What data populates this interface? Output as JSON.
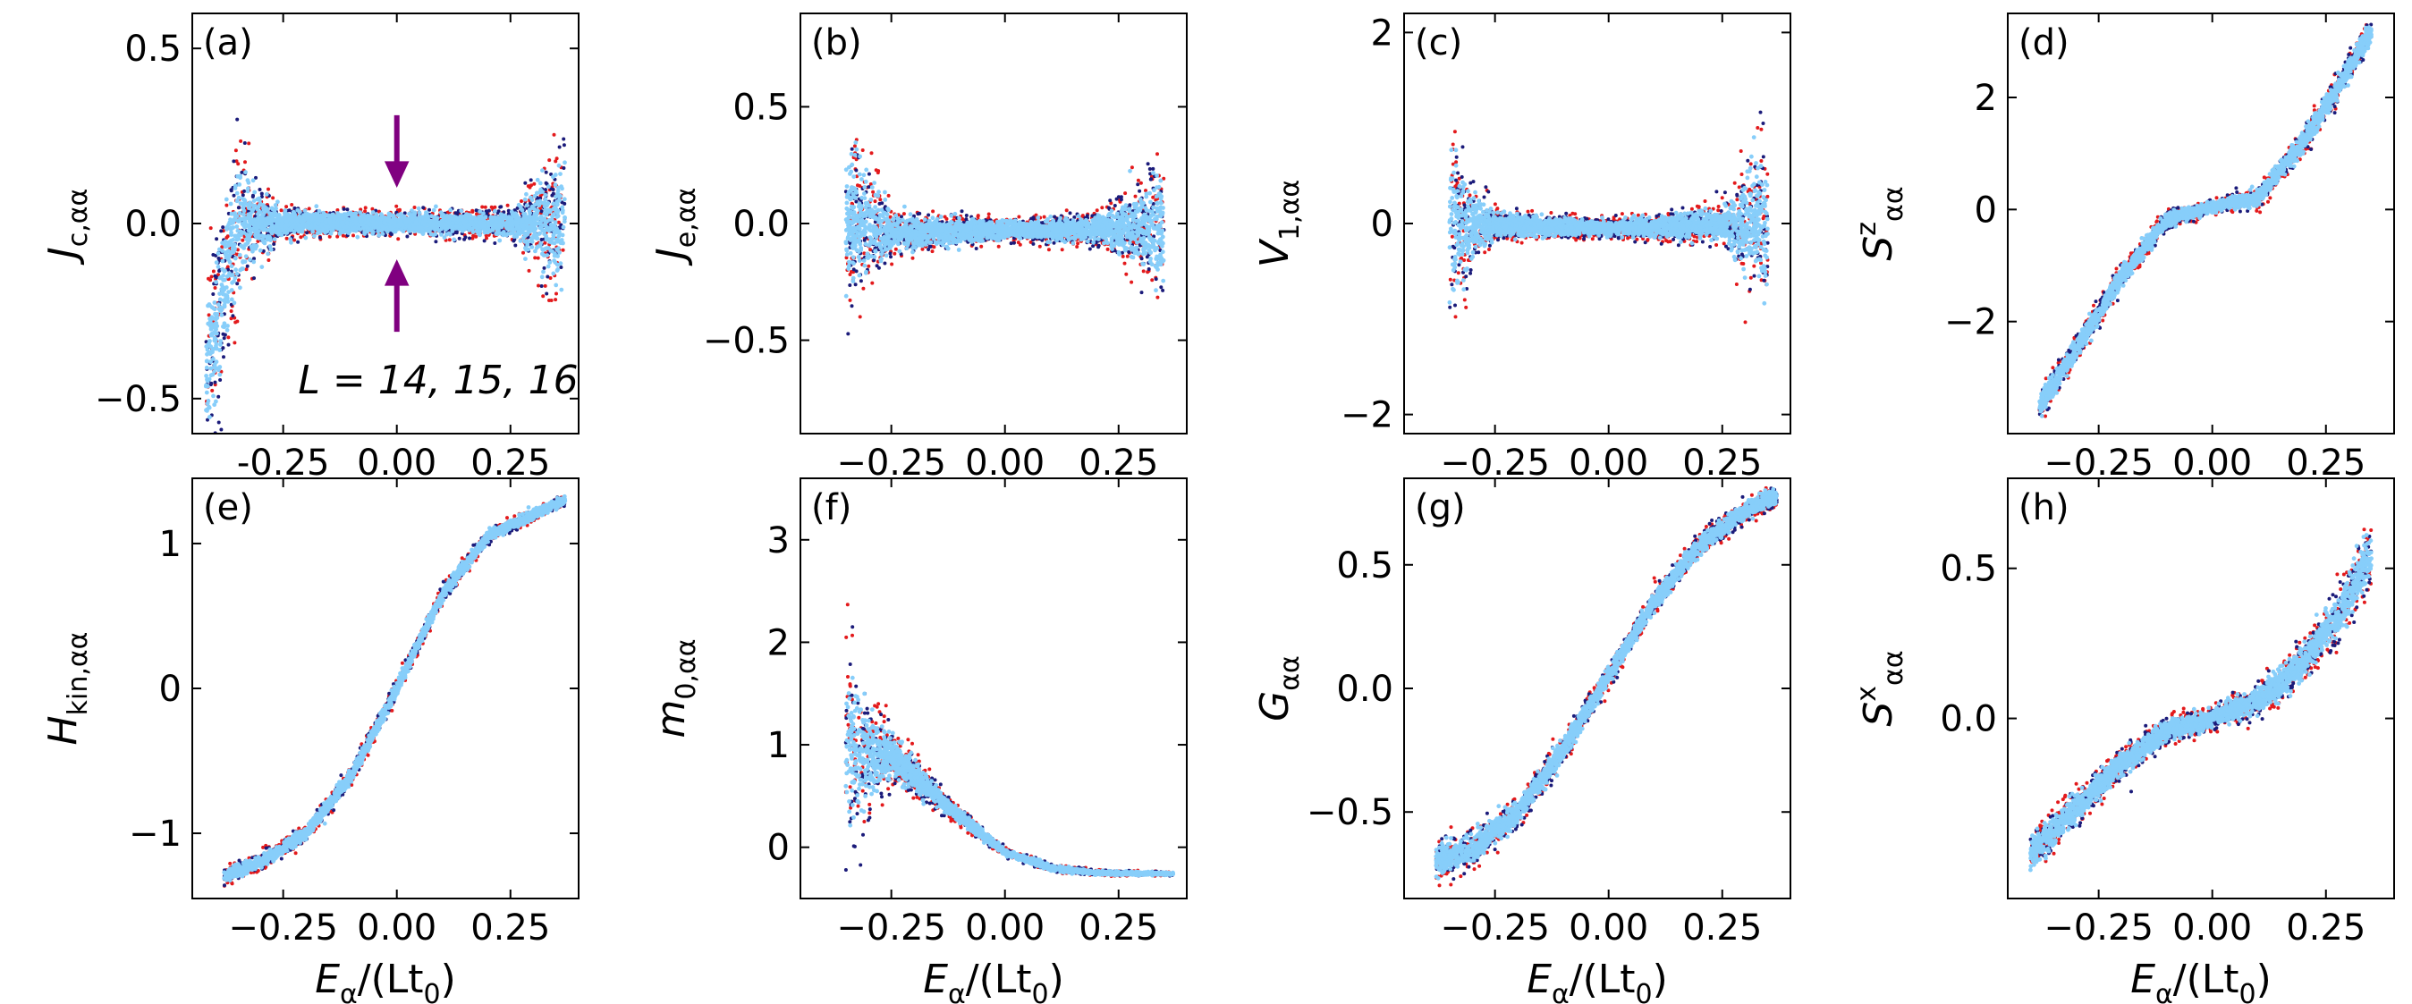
{
  "figure": {
    "legend_note": "L = 14, 15, 16",
    "colors": {
      "L14": "#87cefa",
      "L15": "#1b1b7a",
      "L16": "#e31a1c",
      "arrow": "#800080"
    },
    "series_names": [
      "L = 14",
      "L = 15",
      "L = 16"
    ]
  },
  "chart_data": [
    {
      "type": "scatter",
      "panel": "(a)",
      "xlabel": "",
      "ylabel": "J_{c,αα}",
      "xlim": [
        -0.45,
        0.4
      ],
      "ylim": [
        -0.6,
        0.6
      ],
      "xticks": [
        "-0.25",
        "0.00",
        "0.25"
      ],
      "xtick_values": [
        -0.25,
        0,
        0.25
      ],
      "yticks": [
        "−0.5",
        "0.0",
        "0.5"
      ],
      "ytick_values": [
        -0.5,
        0,
        0.5
      ],
      "annotation": "L = 14, 15, 16",
      "arrows_at_x": 0.0,
      "shape": "band",
      "center": [
        [
          -0.42,
          -0.42
        ],
        [
          -0.35,
          0
        ],
        [
          0.35,
          0
        ],
        [
          0.37,
          0
        ]
      ],
      "width": [
        [
          -0.35,
          0.35
        ],
        [
          -0.3,
          0.15
        ],
        [
          -0.25,
          0.06
        ],
        [
          0,
          0.04
        ],
        [
          0.25,
          0.06
        ],
        [
          0.3,
          0.15
        ],
        [
          0.35,
          0.3
        ]
      ]
    },
    {
      "type": "scatter",
      "panel": "(b)",
      "xlabel": "",
      "ylabel": "J_{e,αα}",
      "xlim": [
        -0.45,
        0.4
      ],
      "ylim": [
        -0.9,
        0.9
      ],
      "xticks": [
        "−0.25",
        "0.00",
        "0.25"
      ],
      "xtick_values": [
        -0.25,
        0,
        0.25
      ],
      "yticks": [
        "−0.5",
        "0.0",
        "0.5"
      ],
      "ytick_values": [
        -0.5,
        0,
        0.5
      ],
      "shape": "band",
      "center": [
        [
          -0.35,
          0
        ],
        [
          -0.25,
          -0.04
        ],
        [
          0,
          -0.03
        ],
        [
          0.25,
          -0.02
        ],
        [
          0.35,
          -0.02
        ]
      ],
      "width": [
        [
          -0.35,
          0.5
        ],
        [
          -0.3,
          0.35
        ],
        [
          -0.25,
          0.12
        ],
        [
          0,
          0.06
        ],
        [
          0.2,
          0.08
        ],
        [
          0.3,
          0.25
        ],
        [
          0.35,
          0.4
        ]
      ]
    },
    {
      "type": "scatter",
      "panel": "(c)",
      "xlabel": "",
      "ylabel": "V_{1,αα}",
      "xlim": [
        -0.45,
        0.4
      ],
      "ylim": [
        -2.2,
        2.2
      ],
      "xticks": [
        "−0.25",
        "0.00",
        "0.25"
      ],
      "xtick_values": [
        -0.25,
        0,
        0.25
      ],
      "yticks": [
        "−2",
        "0",
        "2"
      ],
      "ytick_values": [
        -2,
        0,
        2
      ],
      "shape": "band",
      "center": [
        [
          -0.35,
          0
        ],
        [
          0,
          -0.05
        ],
        [
          0.35,
          0
        ]
      ],
      "width": [
        [
          -0.35,
          1.2
        ],
        [
          -0.3,
          0.6
        ],
        [
          -0.25,
          0.2
        ],
        [
          0,
          0.12
        ],
        [
          0.25,
          0.25
        ],
        [
          0.3,
          0.8
        ],
        [
          0.35,
          1.3
        ]
      ]
    },
    {
      "type": "scatter",
      "panel": "(d)",
      "xlabel": "",
      "ylabel": "S^z_{αα}",
      "xlim": [
        -0.45,
        0.4
      ],
      "ylim": [
        -4.0,
        3.5
      ],
      "xticks": [
        "−0.25",
        "0.00",
        "0.25"
      ],
      "xtick_values": [
        -0.25,
        0,
        0.25
      ],
      "yticks": [
        "−2",
        "0",
        "2"
      ],
      "ytick_values": [
        -2,
        0,
        2
      ],
      "shape": "band",
      "center": [
        [
          -0.38,
          -3.5
        ],
        [
          -0.3,
          -2.5
        ],
        [
          -0.2,
          -1.2
        ],
        [
          -0.1,
          -0.2
        ],
        [
          0,
          0.05
        ],
        [
          0.1,
          0.2
        ],
        [
          0.2,
          1.2
        ],
        [
          0.3,
          2.5
        ],
        [
          0.35,
          3.2
        ]
      ],
      "width": [
        [
          -0.35,
          0.35
        ],
        [
          -0.2,
          0.3
        ],
        [
          0,
          0.15
        ],
        [
          0.2,
          0.3
        ],
        [
          0.35,
          0.35
        ]
      ]
    },
    {
      "type": "scatter",
      "panel": "(e)",
      "xlabel": "E_α/(Lt_0)",
      "ylabel": "H_{kin,αα}",
      "xlim": [
        -0.45,
        0.4
      ],
      "ylim": [
        -1.45,
        1.45
      ],
      "xticks": [
        "−0.25",
        "0.00",
        "0.25"
      ],
      "xtick_values": [
        -0.25,
        0,
        0.25
      ],
      "yticks": [
        "−1",
        "0",
        "1"
      ],
      "ytick_values": [
        -1,
        0,
        1
      ],
      "shape": "band",
      "center": [
        [
          -0.38,
          -1.3
        ],
        [
          -0.3,
          -1.2
        ],
        [
          -0.2,
          -1.0
        ],
        [
          -0.1,
          -0.6
        ],
        [
          0,
          0
        ],
        [
          0.1,
          0.65
        ],
        [
          0.2,
          1.05
        ],
        [
          0.3,
          1.2
        ],
        [
          0.37,
          1.3
        ]
      ],
      "width": [
        [
          -0.35,
          0.07
        ],
        [
          0,
          0.08
        ],
        [
          0.35,
          0.05
        ]
      ]
    },
    {
      "type": "scatter",
      "panel": "(f)",
      "xlabel": "E_α/(Lt_0)",
      "ylabel": "m_{0,αα}",
      "xlim": [
        -0.45,
        0.4
      ],
      "ylim": [
        -0.5,
        3.6
      ],
      "xticks": [
        "−0.25",
        "0.00",
        "0.25"
      ],
      "xtick_values": [
        -0.25,
        0,
        0.25
      ],
      "yticks": [
        "0",
        "1",
        "2",
        "3"
      ],
      "ytick_values": [
        0,
        1,
        2,
        3
      ],
      "shape": "band",
      "center": [
        [
          -0.35,
          1.0
        ],
        [
          -0.3,
          0.9
        ],
        [
          -0.25,
          0.9
        ],
        [
          -0.2,
          0.7
        ],
        [
          -0.1,
          0.3
        ],
        [
          0,
          -0.05
        ],
        [
          0.1,
          -0.2
        ],
        [
          0.2,
          -0.25
        ],
        [
          0.37,
          -0.26
        ]
      ],
      "width": [
        [
          -0.35,
          1.3
        ],
        [
          -0.3,
          0.8
        ],
        [
          -0.25,
          0.35
        ],
        [
          -0.15,
          0.15
        ],
        [
          0,
          0.05
        ],
        [
          0.37,
          0.02
        ]
      ]
    },
    {
      "type": "scatter",
      "panel": "(g)",
      "xlabel": "E_α/(Lt_0)",
      "ylabel": "G_{αα}",
      "xlim": [
        -0.45,
        0.4
      ],
      "ylim": [
        -0.85,
        0.85
      ],
      "xticks": [
        "−0.25",
        "0.00",
        "0.25"
      ],
      "xtick_values": [
        -0.25,
        0,
        0.25
      ],
      "yticks": [
        "−0.5",
        "0.0",
        "0.5"
      ],
      "ytick_values": [
        -0.5,
        0,
        0.5
      ],
      "shape": "band",
      "center": [
        [
          -0.38,
          -0.7
        ],
        [
          -0.3,
          -0.65
        ],
        [
          -0.2,
          -0.5
        ],
        [
          -0.1,
          -0.25
        ],
        [
          0,
          0.05
        ],
        [
          0.1,
          0.35
        ],
        [
          0.2,
          0.58
        ],
        [
          0.3,
          0.72
        ],
        [
          0.37,
          0.78
        ]
      ],
      "width": [
        [
          -0.35,
          0.1
        ],
        [
          0,
          0.06
        ],
        [
          0.35,
          0.06
        ]
      ]
    },
    {
      "type": "scatter",
      "panel": "(h)",
      "xlabel": "E_α/(Lt_0)",
      "ylabel": "S^x_{αα}",
      "xlim": [
        -0.45,
        0.4
      ],
      "ylim": [
        -0.6,
        0.8
      ],
      "xticks": [
        "−0.25",
        "0.00",
        "0.25"
      ],
      "xtick_values": [
        -0.25,
        0,
        0.25
      ],
      "yticks": [
        "0.0",
        "0.5"
      ],
      "ytick_values": [
        0,
        0.5
      ],
      "shape": "band",
      "center": [
        [
          -0.4,
          -0.45
        ],
        [
          -0.3,
          -0.3
        ],
        [
          -0.2,
          -0.15
        ],
        [
          -0.1,
          -0.04
        ],
        [
          0,
          0.0
        ],
        [
          0.1,
          0.06
        ],
        [
          0.2,
          0.18
        ],
        [
          0.3,
          0.4
        ],
        [
          0.35,
          0.55
        ]
      ],
      "width": [
        [
          -0.35,
          0.08
        ],
        [
          0,
          0.05
        ],
        [
          0.25,
          0.1
        ],
        [
          0.35,
          0.15
        ]
      ]
    }
  ]
}
